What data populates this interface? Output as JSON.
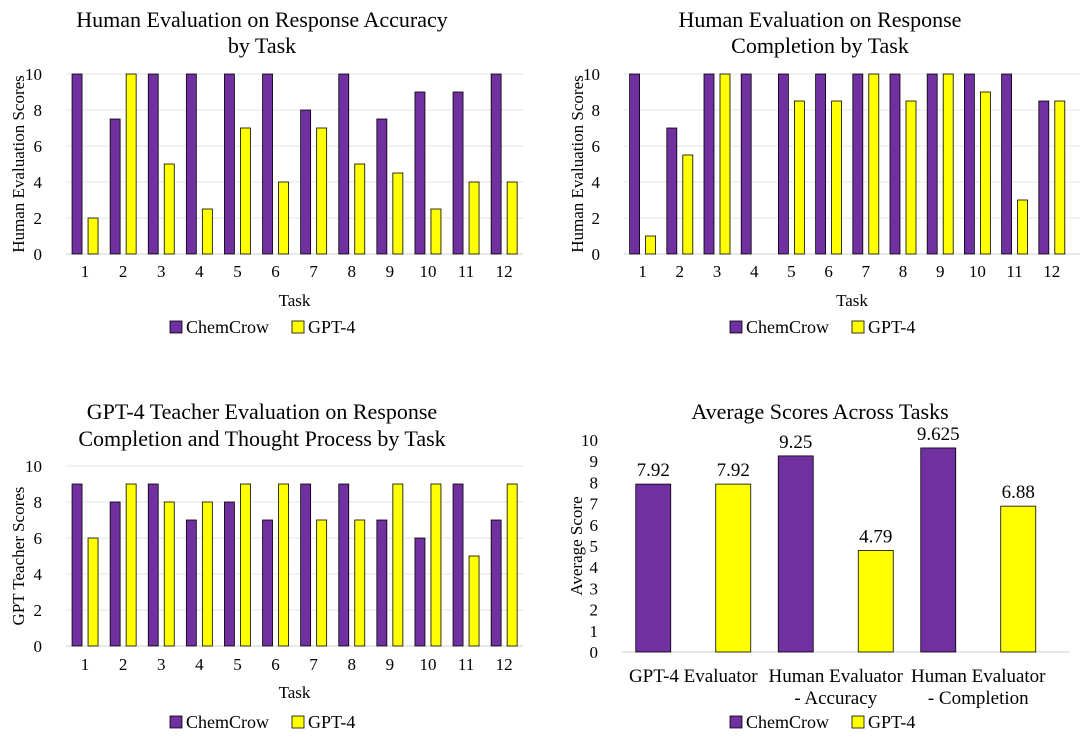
{
  "figure": {
    "series_names": [
      "ChemCrow",
      "GPT-4"
    ],
    "series_colors": [
      "#7030A0",
      "#FFFF00"
    ],
    "bar_stroke": "#000000",
    "grid_color": "#e6e6e6"
  },
  "chart_data": [
    {
      "type": "bar",
      "title": "Human Evaluation on Response Accuracy by Task",
      "title_lines": [
        "Human Evaluation on Response Accuracy",
        "by Task"
      ],
      "xlabel": "Task",
      "ylabel": "Human Evaluation Scores",
      "ylim": [
        0,
        10
      ],
      "yticks": [
        0,
        2,
        4,
        6,
        8,
        10
      ],
      "grid": true,
      "legend": "bottom-center",
      "categories": [
        "1",
        "2",
        "3",
        "4",
        "5",
        "6",
        "7",
        "8",
        "9",
        "10",
        "11",
        "12"
      ],
      "series": [
        {
          "name": "ChemCrow",
          "values": [
            10,
            7.5,
            10,
            10,
            10,
            10,
            8,
            10,
            7.5,
            9,
            9,
            10
          ]
        },
        {
          "name": "GPT-4",
          "values": [
            2,
            10,
            5,
            2.5,
            7,
            4,
            7,
            5,
            4.5,
            2.5,
            4,
            4
          ]
        }
      ]
    },
    {
      "type": "bar",
      "title": "Human Evaluation on Response Completion by Task",
      "title_lines": [
        "Human Evaluation on Response",
        "Completion by Task"
      ],
      "xlabel": "Task",
      "ylabel": "Human Evaluation Scores",
      "ylim": [
        0,
        10
      ],
      "yticks": [
        0,
        2,
        4,
        6,
        8,
        10
      ],
      "grid": true,
      "legend": "bottom-center",
      "categories": [
        "1",
        "2",
        "3",
        "4",
        "5",
        "6",
        "7",
        "8",
        "9",
        "10",
        "11",
        "12"
      ],
      "series": [
        {
          "name": "ChemCrow",
          "values": [
            10,
            7,
            10,
            10,
            10,
            10,
            10,
            10,
            10,
            10,
            10,
            8.5
          ]
        },
        {
          "name": "GPT-4",
          "values": [
            1,
            5.5,
            10,
            0,
            8.5,
            8.5,
            10,
            8.5,
            10,
            9,
            3,
            8.5
          ]
        }
      ]
    },
    {
      "type": "bar",
      "title": "GPT-4 Teacher Evaluation on Response Completion and Thought Process by Task",
      "title_lines": [
        "GPT-4 Teacher Evaluation on Response",
        "Completion and Thought Process by Task"
      ],
      "xlabel": "Task",
      "ylabel": "GPT Teacher Scores",
      "ylim": [
        0,
        10
      ],
      "yticks": [
        0,
        2,
        4,
        6,
        8,
        10
      ],
      "grid": true,
      "legend": "bottom-center",
      "categories": [
        "1",
        "2",
        "3",
        "4",
        "5",
        "6",
        "7",
        "8",
        "9",
        "10",
        "11",
        "12"
      ],
      "series": [
        {
          "name": "ChemCrow",
          "values": [
            9,
            8,
            9,
            7,
            8,
            7,
            9,
            9,
            7,
            6,
            9,
            7
          ]
        },
        {
          "name": "GPT-4",
          "values": [
            6,
            9,
            8,
            8,
            9,
            9,
            7,
            7,
            9,
            9,
            5,
            9
          ]
        }
      ]
    },
    {
      "type": "bar",
      "title": "Average Scores Across Tasks",
      "title_lines": [
        "Average Scores Across Tasks"
      ],
      "xlabel": "",
      "ylabel": "Average Score",
      "ylim": [
        0,
        10
      ],
      "yticks": [
        0,
        1,
        2,
        3,
        4,
        5,
        6,
        7,
        8,
        9,
        10
      ],
      "grid": false,
      "legend": "bottom-center",
      "categories": [
        "GPT-4 Evaluator",
        "Human Evaluator - Accuracy",
        "Human Evaluator - Completion"
      ],
      "category_lines": [
        [
          "GPT-4 Evaluator"
        ],
        [
          "Human Evaluator",
          "- Accuracy"
        ],
        [
          "Human Evaluator",
          "- Completion"
        ]
      ],
      "series": [
        {
          "name": "ChemCrow",
          "values": [
            7.92,
            9.25,
            9.625
          ],
          "labels": [
            "7.92",
            "9.25",
            "9.625"
          ]
        },
        {
          "name": "GPT-4",
          "values": [
            7.92,
            4.79,
            6.88
          ],
          "labels": [
            "7.92",
            "4.79",
            "6.88"
          ]
        }
      ]
    }
  ]
}
